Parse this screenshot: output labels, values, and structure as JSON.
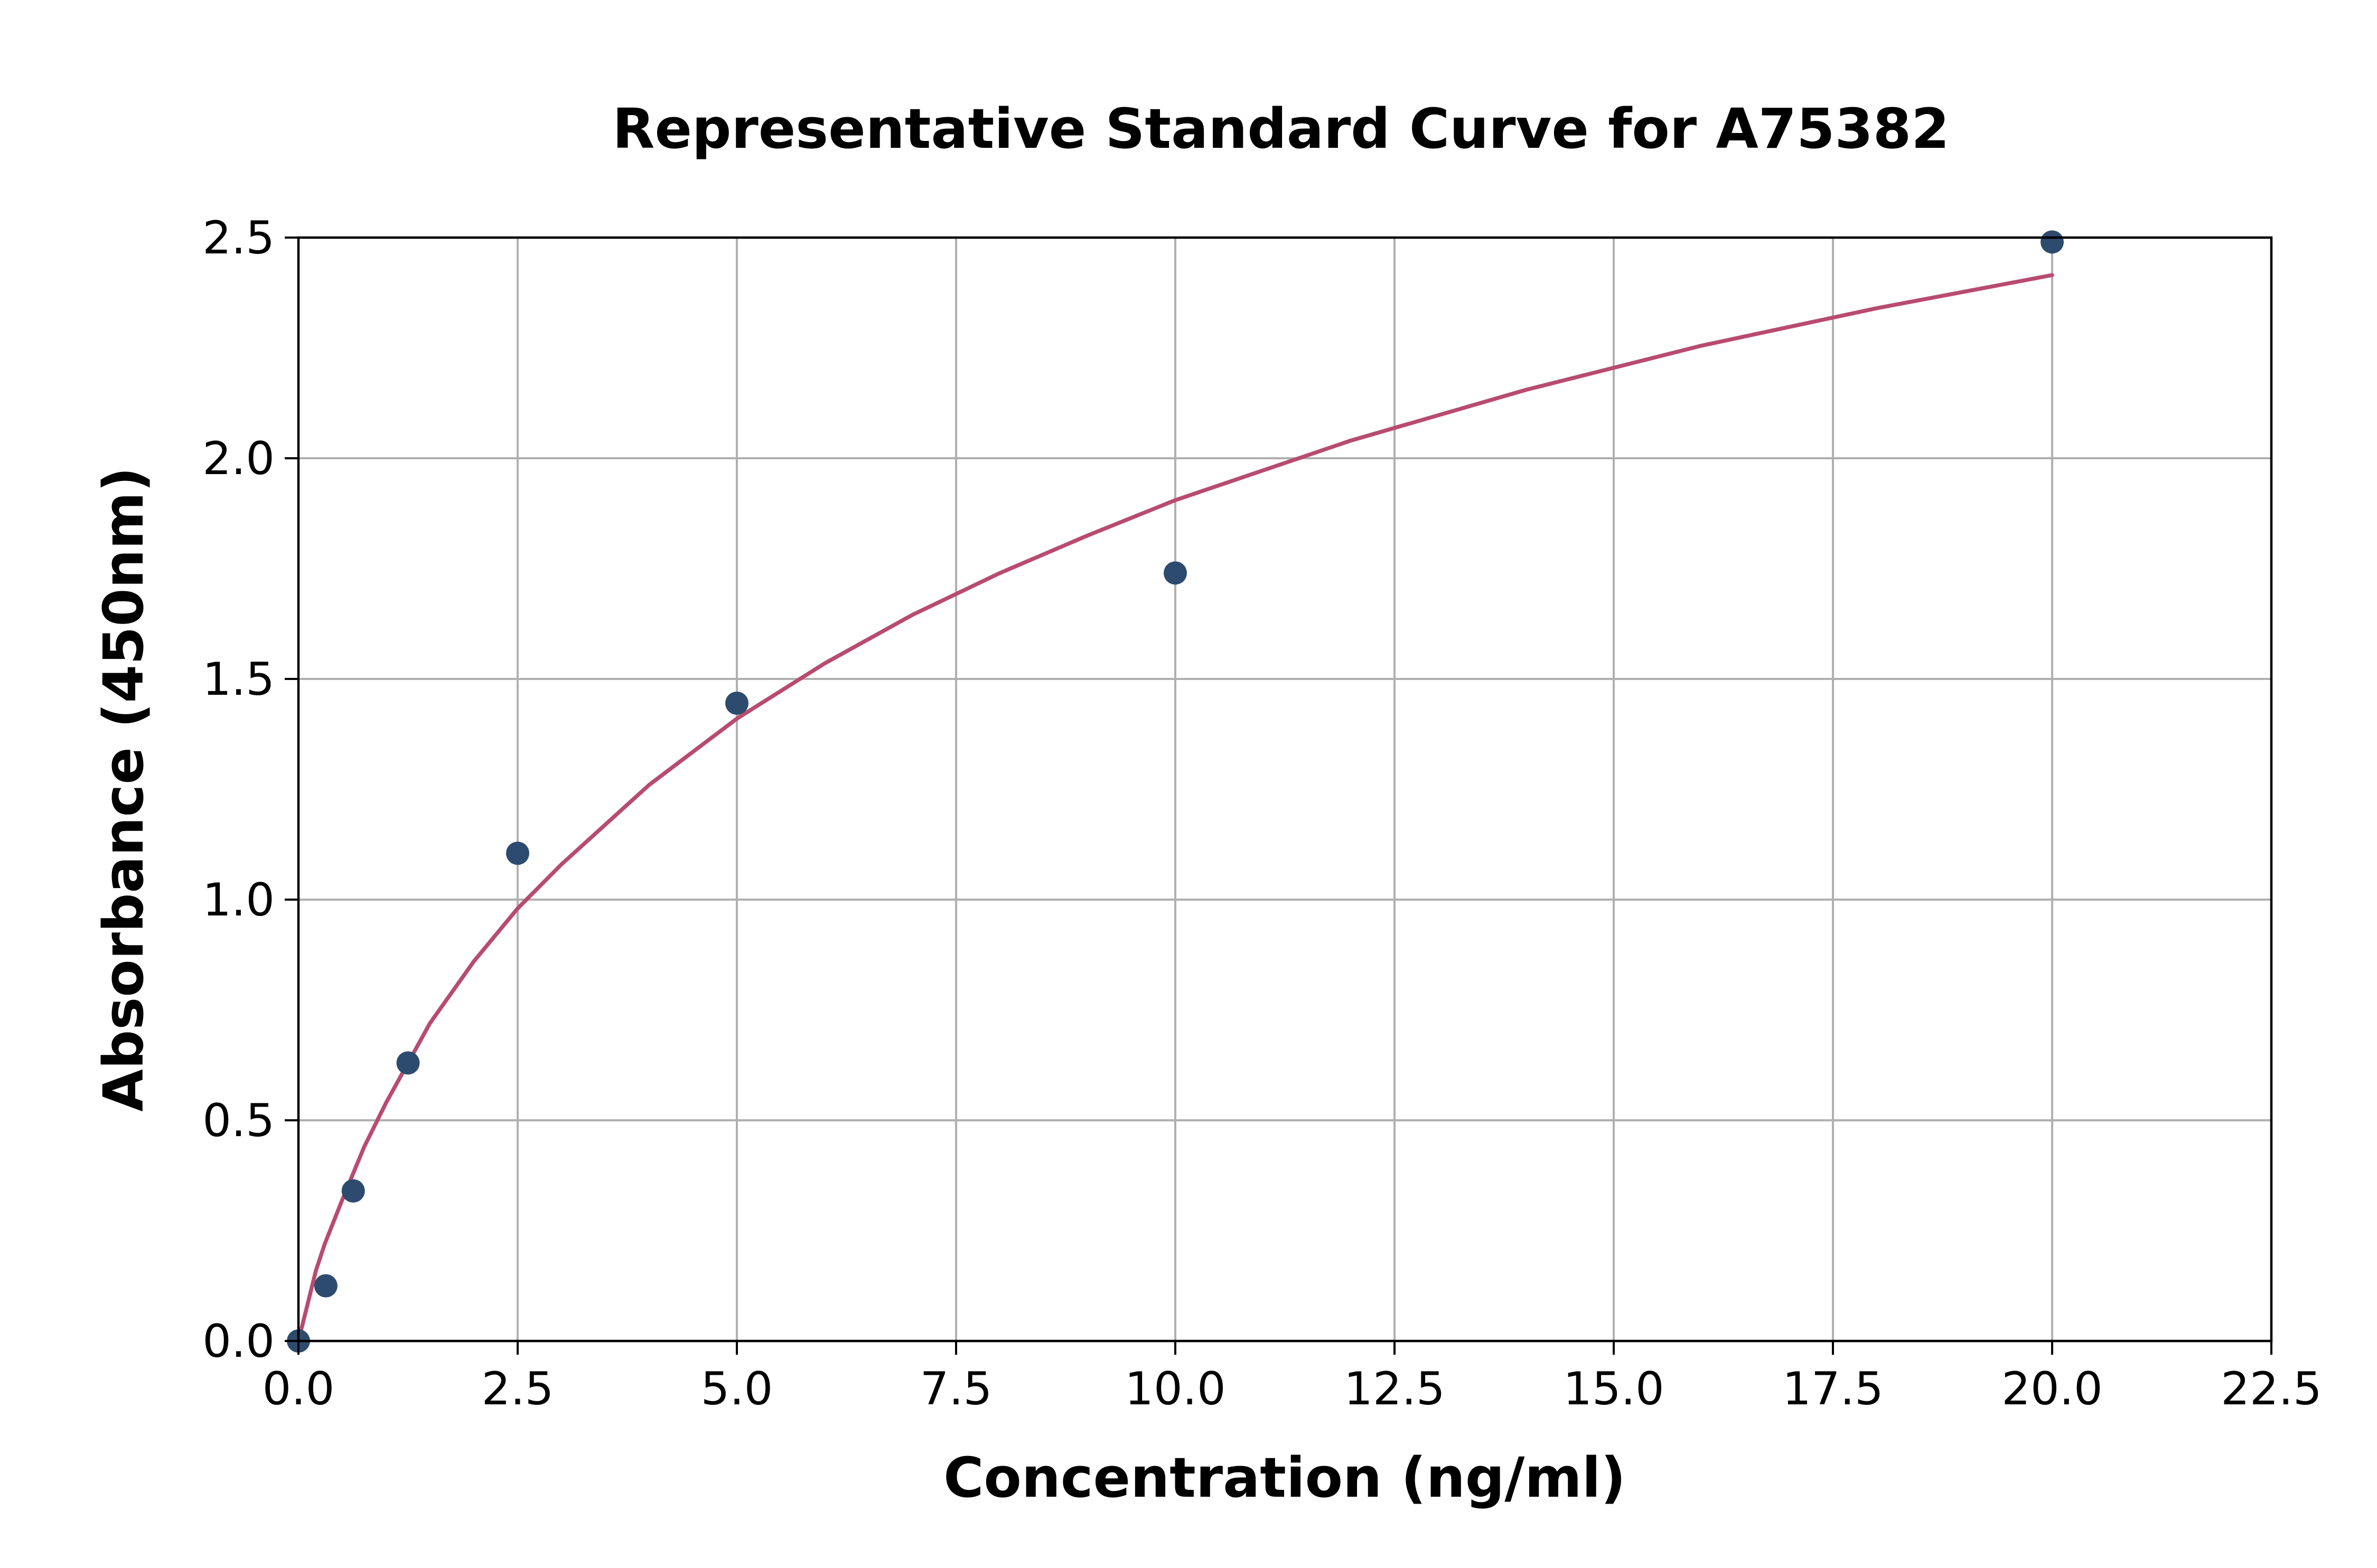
{
  "chart_data": {
    "type": "scatter",
    "title": "Representative Standard Curve for A75382",
    "xlabel": "Concentration (ng/ml)",
    "ylabel": "Absorbance (450nm)",
    "xlim": [
      0,
      22.5
    ],
    "ylim": [
      0,
      2.5
    ],
    "x_ticks": [
      0,
      2.5,
      5,
      7.5,
      10,
      12.5,
      15,
      17.5,
      20,
      22.5
    ],
    "x_tick_labels": [
      "0.0",
      "2.5",
      "5.0",
      "7.5",
      "10.0",
      "12.5",
      "15.0",
      "17.5",
      "20.0",
      "22.5"
    ],
    "y_ticks": [
      0,
      0.5,
      1,
      1.5,
      2,
      2.5
    ],
    "y_tick_labels": [
      "0.0",
      "0.5",
      "1.0",
      "1.5",
      "2.0",
      "2.5"
    ],
    "grid": true,
    "series": [
      {
        "kind": "points",
        "color": "#2d4b6e",
        "x": [
          0,
          0.3125,
          0.625,
          1.25,
          2.5,
          5,
          10,
          20
        ],
        "y": [
          0.0,
          0.125,
          0.34,
          0.63,
          1.105,
          1.445,
          1.74,
          2.49
        ]
      },
      {
        "kind": "fit-curve",
        "color": "#b84b70",
        "x": [
          0,
          0.1,
          0.2,
          0.3,
          0.5,
          0.75,
          1,
          1.5,
          2,
          2.5,
          3,
          4,
          5,
          6,
          7,
          8,
          9,
          10,
          12,
          14,
          16,
          18,
          20
        ],
        "y": [
          0.0,
          0.08,
          0.16,
          0.22,
          0.32,
          0.44,
          0.54,
          0.72,
          0.86,
          0.98,
          1.08,
          1.26,
          1.41,
          1.535,
          1.645,
          1.74,
          1.825,
          1.905,
          2.04,
          2.155,
          2.255,
          2.34,
          2.415
        ]
      }
    ]
  }
}
